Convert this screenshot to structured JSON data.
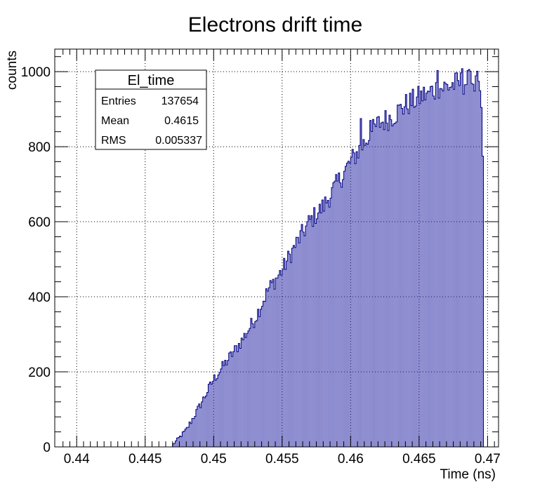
{
  "chart_data": {
    "type": "bar",
    "title": "Electrons drift time",
    "xlabel": "Time (ns)",
    "ylabel": "counts",
    "xlim": [
      0.4384,
      0.4708
    ],
    "ylim": [
      0,
      1060
    ],
    "grid": true,
    "x_ticks": [
      0.44,
      0.445,
      0.45,
      0.455,
      0.46,
      0.465,
      0.47
    ],
    "x_tick_labels": [
      "0.44",
      "0.445",
      "0.45",
      "0.455",
      "0.46",
      "0.465",
      "0.47"
    ],
    "y_ticks": [
      0,
      200,
      400,
      600,
      800,
      1000
    ],
    "y_tick_labels": [
      "0",
      "200",
      "400",
      "600",
      "800",
      "1000"
    ],
    "bin_width": 0.0001,
    "bin_start": 0.447,
    "bin_end": 0.4697,
    "envelope": [
      [
        0.447,
        5
      ],
      [
        0.448,
        45
      ],
      [
        0.449,
        110
      ],
      [
        0.45,
        180
      ],
      [
        0.451,
        230
      ],
      [
        0.452,
        280
      ],
      [
        0.453,
        340
      ],
      [
        0.454,
        420
      ],
      [
        0.455,
        470
      ],
      [
        0.456,
        540
      ],
      [
        0.457,
        600
      ],
      [
        0.458,
        640
      ],
      [
        0.459,
        700
      ],
      [
        0.46,
        760
      ],
      [
        0.461,
        810
      ],
      [
        0.462,
        860
      ],
      [
        0.463,
        880
      ],
      [
        0.464,
        910
      ],
      [
        0.465,
        930
      ],
      [
        0.466,
        950
      ],
      [
        0.467,
        960
      ],
      [
        0.468,
        970
      ],
      [
        0.469,
        975
      ],
      [
        0.4695,
        930
      ],
      [
        0.4697,
        700
      ]
    ],
    "peaks": [
      [
        0.4663,
        1003
      ],
      [
        0.4681,
        1008
      ],
      [
        0.4687,
        1001
      ],
      [
        0.4692,
        1001
      ],
      [
        0.4656,
        948
      ],
      [
        0.4637,
        902
      ],
      [
        0.4607,
        875
      ],
      [
        0.4614,
        870
      ]
    ],
    "series_color": "#000080"
  },
  "stats_box": {
    "name": "El_time",
    "rows": [
      {
        "label": "Entries",
        "value": "137654"
      },
      {
        "label": "Mean",
        "value": "0.4615"
      },
      {
        "label": "RMS",
        "value": "0.005337"
      }
    ]
  }
}
